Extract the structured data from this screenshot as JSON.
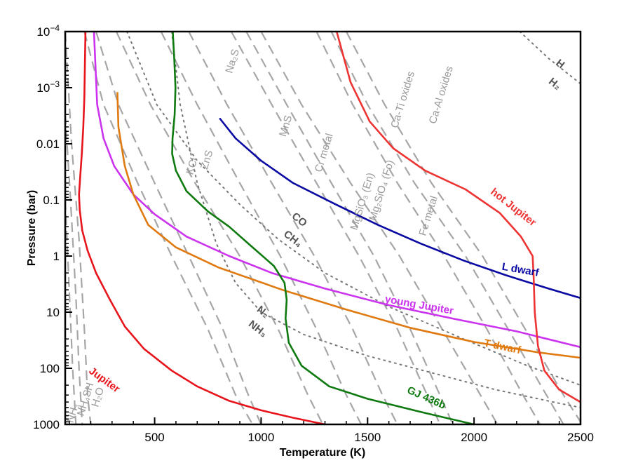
{
  "chart_data": {
    "type": "line",
    "title": "",
    "xlabel": "Temperature (K)",
    "ylabel": "Pressure (bar)",
    "xlim": [
      80,
      2500
    ],
    "ylim": [
      0.0001,
      1000
    ],
    "y_scale": "log",
    "y_inverted": true,
    "grid": false,
    "x_ticks": [
      500,
      1000,
      1500,
      2000,
      2500
    ],
    "x_tick_labels": [
      "500",
      "1000",
      "1500",
      "2000",
      "2500"
    ],
    "y_ticks": [
      0.0001,
      0.001,
      0.01,
      0.1,
      1,
      10,
      100,
      1000
    ],
    "y_tick_labels": [
      {
        "base": "10",
        "exp": "−4"
      },
      {
        "base": "10",
        "exp": "−3"
      },
      {
        "base": "0.01",
        "exp": ""
      },
      {
        "base": "0.1",
        "exp": ""
      },
      {
        "base": "1",
        "exp": ""
      },
      {
        "base": "10",
        "exp": ""
      },
      {
        "base": "100",
        "exp": ""
      },
      {
        "base": "1000",
        "exp": ""
      }
    ],
    "series": [
      {
        "name": "Jupiter",
        "color": "#e8141c",
        "label_pos": [
          255,
          180
        ],
        "label_angle": 36,
        "points": [
          [
            175,
            0.0001
          ],
          [
            170,
            0.0015
          ],
          [
            165,
            0.005
          ],
          [
            158,
            0.015
          ],
          [
            150,
            0.04
          ],
          [
            145,
            0.08
          ],
          [
            148,
            0.15
          ],
          [
            160,
            0.35
          ],
          [
            185,
            0.8
          ],
          [
            225,
            2
          ],
          [
            290,
            6
          ],
          [
            360,
            18
          ],
          [
            450,
            45
          ],
          [
            580,
            110
          ],
          [
            700,
            210
          ],
          [
            850,
            380
          ],
          [
            1000,
            560
          ],
          [
            1150,
            760
          ],
          [
            1300,
            1000
          ]
        ]
      },
      {
        "name": "young Jupiter",
        "color": "#cc33ee",
        "label_pos": [
          1740,
          8.5
        ],
        "label_angle": 10,
        "points": [
          [
            215,
            0.0001
          ],
          [
            230,
            0.002
          ],
          [
            260,
            0.008
          ],
          [
            310,
            0.025
          ],
          [
            400,
            0.08
          ],
          [
            500,
            0.18
          ],
          [
            650,
            0.45
          ],
          [
            850,
            1
          ],
          [
            1050,
            2
          ],
          [
            1300,
            3.8
          ],
          [
            1600,
            7.5
          ],
          [
            1900,
            13
          ],
          [
            2200,
            22
          ],
          [
            2500,
            42
          ]
        ]
      },
      {
        "name": "T dwarf",
        "color": "#e07a10",
        "label_pos": [
          2130,
          47
        ],
        "label_angle": 12,
        "points": [
          [
            325,
            0.0012
          ],
          [
            330,
            0.005
          ],
          [
            360,
            0.025
          ],
          [
            400,
            0.08
          ],
          [
            470,
            0.28
          ],
          [
            600,
            0.7
          ],
          [
            800,
            1.6
          ],
          [
            1100,
            4
          ],
          [
            1400,
            9
          ],
          [
            1700,
            19
          ],
          [
            2000,
            34
          ],
          [
            2300,
            52
          ],
          [
            2500,
            65
          ]
        ]
      },
      {
        "name": "GJ 436b",
        "color": "#0f7a0f",
        "label_pos": [
          1770,
          380
        ],
        "label_angle": 24,
        "points": [
          [
            585,
            0.0001
          ],
          [
            592,
            0.0003
          ],
          [
            598,
            0.001
          ],
          [
            594,
            0.003
          ],
          [
            584,
            0.008
          ],
          [
            582,
            0.015
          ],
          [
            600,
            0.03
          ],
          [
            650,
            0.07
          ],
          [
            750,
            0.16
          ],
          [
            850,
            0.3
          ],
          [
            960,
            0.7
          ],
          [
            1060,
            1.5
          ],
          [
            1110,
            3
          ],
          [
            1120,
            6
          ],
          [
            1115,
            13
          ],
          [
            1130,
            35
          ],
          [
            1190,
            90
          ],
          [
            1320,
            210
          ],
          [
            1500,
            350
          ],
          [
            1750,
            600
          ],
          [
            2000,
            1000
          ]
        ]
      },
      {
        "name": "L dwarf",
        "color": "#0a0aa3",
        "label_pos": [
          2215,
          2.0
        ],
        "label_angle": 10,
        "points": [
          [
            805,
            0.0035
          ],
          [
            880,
            0.008
          ],
          [
            1000,
            0.02
          ],
          [
            1150,
            0.05
          ],
          [
            1350,
            0.12
          ],
          [
            1550,
            0.28
          ],
          [
            1750,
            0.6
          ],
          [
            1950,
            1.2
          ],
          [
            2150,
            2.2
          ],
          [
            2350,
            3.8
          ],
          [
            2500,
            5.6
          ]
        ]
      },
      {
        "name": "hot Jupiter",
        "color": "#ee3333",
        "label_pos": [
          2175,
          0.15
        ],
        "label_angle": 38,
        "points": [
          [
            1355,
            0.0001
          ],
          [
            1420,
            0.0008
          ],
          [
            1510,
            0.004
          ],
          [
            1620,
            0.012
          ],
          [
            1770,
            0.03
          ],
          [
            1960,
            0.065
          ],
          [
            2120,
            0.17
          ],
          [
            2220,
            0.45
          ],
          [
            2275,
            1
          ],
          [
            2280,
            2.5
          ],
          [
            2285,
            10
          ],
          [
            2300,
            40
          ],
          [
            2330,
            110
          ],
          [
            2400,
            240
          ],
          [
            2500,
            400
          ]
        ]
      }
    ],
    "condensation_curves": [
      {
        "label": "H₂O",
        "points": [
          [
            80,
            0.0001
          ],
          [
            110,
            0.01
          ],
          [
            145,
            0.5
          ],
          [
            170,
            20
          ],
          [
            185,
            300
          ],
          [
            200,
            1000
          ]
        ]
      },
      {
        "label": "NH₄SH",
        "points": [
          [
            80,
            0.003
          ],
          [
            105,
            0.1
          ],
          [
            130,
            5
          ],
          [
            145,
            100
          ],
          [
            160,
            1000
          ]
        ]
      },
      {
        "label": "NH₃",
        "points": [
          [
            80,
            0.1
          ],
          [
            100,
            5
          ],
          [
            115,
            100
          ],
          [
            130,
            1000
          ]
        ]
      },
      {
        "label": "KCl",
        "points": [
          [
            170,
            0.0001
          ],
          [
            260,
            0.002
          ],
          [
            420,
            0.05
          ],
          [
            580,
            1
          ],
          [
            750,
            20
          ],
          [
            880,
            300
          ],
          [
            960,
            1000
          ]
        ]
      },
      {
        "label": "ZnS",
        "points": [
          [
            225,
            0.0001
          ],
          [
            330,
            0.002
          ],
          [
            500,
            0.05
          ],
          [
            660,
            1
          ],
          [
            820,
            20
          ],
          [
            940,
            300
          ],
          [
            1000,
            1000
          ]
        ]
      },
      {
        "label": "Na₂S",
        "points": [
          [
            320,
            0.0001
          ],
          [
            480,
            0.002
          ],
          [
            690,
            0.05
          ],
          [
            900,
            1
          ],
          [
            1080,
            20
          ],
          [
            1220,
            300
          ],
          [
            1290,
            1000
          ]
        ]
      },
      {
        "label": "MnS",
        "points": [
          [
            530,
            0.0001
          ],
          [
            700,
            0.002
          ],
          [
            900,
            0.05
          ],
          [
            1090,
            1
          ],
          [
            1260,
            20
          ],
          [
            1400,
            300
          ],
          [
            1470,
            1000
          ]
        ]
      },
      {
        "label": "Cr metal",
        "points": [
          [
            660,
            0.0001
          ],
          [
            840,
            0.002
          ],
          [
            1050,
            0.05
          ],
          [
            1250,
            1
          ],
          [
            1430,
            20
          ],
          [
            1570,
            300
          ],
          [
            1640,
            1000
          ]
        ]
      },
      {
        "label": "MgSiO₃ (En)",
        "points": [
          [
            860,
            0.0001
          ],
          [
            1050,
            0.002
          ],
          [
            1260,
            0.05
          ],
          [
            1460,
            1
          ],
          [
            1640,
            20
          ],
          [
            1780,
            300
          ],
          [
            1840,
            1000
          ]
        ]
      },
      {
        "label": "Mg₂SiO₄ (Fo)",
        "points": [
          [
            930,
            0.0001
          ],
          [
            1120,
            0.002
          ],
          [
            1330,
            0.05
          ],
          [
            1530,
            1
          ],
          [
            1700,
            20
          ],
          [
            1840,
            300
          ],
          [
            1900,
            1000
          ]
        ]
      },
      {
        "label": "Fe metal",
        "points": [
          [
            1000,
            0.0001
          ],
          [
            1190,
            0.002
          ],
          [
            1420,
            0.05
          ],
          [
            1650,
            1
          ],
          [
            1850,
            20
          ],
          [
            2030,
            300
          ],
          [
            2110,
            1000
          ]
        ]
      },
      {
        "label": "Ca-Ti oxides",
        "points": [
          [
            1260,
            0.0001
          ],
          [
            1430,
            0.002
          ],
          [
            1640,
            0.05
          ],
          [
            1860,
            1
          ],
          [
            2060,
            20
          ],
          [
            2230,
            300
          ],
          [
            2310,
            1000
          ]
        ]
      },
      {
        "label": "Ca-Al oxides",
        "points": [
          [
            1330,
            0.0001
          ],
          [
            1500,
            0.002
          ],
          [
            1720,
            0.05
          ],
          [
            1960,
            1
          ],
          [
            2160,
            20
          ],
          [
            2340,
            300
          ],
          [
            2420,
            1000
          ]
        ]
      },
      {
        "label": "",
        "points": [
          [
            1400,
            0.0001
          ],
          [
            1580,
            0.002
          ],
          [
            1800,
            0.05
          ],
          [
            2040,
            1
          ],
          [
            2240,
            20
          ],
          [
            2420,
            300
          ],
          [
            2500,
            900
          ]
        ]
      }
    ],
    "equilibrium_curves": [
      {
        "label_a": "CO",
        "label_b": "CH₄",
        "points": [
          [
            370,
            0.0001
          ],
          [
            510,
            0.002
          ],
          [
            700,
            0.02
          ],
          [
            900,
            0.12
          ],
          [
            1080,
            0.5
          ],
          [
            1300,
            2
          ],
          [
            1600,
            8
          ],
          [
            1950,
            30
          ],
          [
            2250,
            90
          ],
          [
            2500,
            200
          ]
        ]
      },
      {
        "label_a": "N₂",
        "label_b": "NH₃",
        "points": [
          [
            580,
            0.0001
          ],
          [
            620,
            0.002
          ],
          [
            700,
            0.05
          ],
          [
            790,
            0.6
          ],
          [
            880,
            3
          ],
          [
            1000,
            10
          ],
          [
            1200,
            25
          ],
          [
            1500,
            60
          ],
          [
            1800,
            120
          ],
          [
            2100,
            240
          ],
          [
            2400,
            420
          ],
          [
            2500,
            500
          ]
        ]
      },
      {
        "label_a": "H",
        "label_b": "H₂",
        "points": [
          [
            2215,
            0.0001
          ],
          [
            2350,
            0.0003
          ],
          [
            2500,
            0.00085
          ]
        ]
      }
    ],
    "annotations": [
      {
        "text": "KCl",
        "x": 690,
        "y": 0.026,
        "angle": -73,
        "cls": "cond-label"
      },
      {
        "text": "ZnS",
        "x": 760,
        "y": 0.02,
        "angle": -73,
        "cls": "cond-label"
      },
      {
        "text": "Na₂S",
        "x": 880,
        "y": 0.00035,
        "angle": -73,
        "cls": "cond-label"
      },
      {
        "text": "MnS",
        "x": 1130,
        "y": 0.005,
        "angle": -73,
        "cls": "cond-label"
      },
      {
        "text": "Cr metal",
        "x": 1310,
        "y": 0.015,
        "angle": -73,
        "cls": "cond-label"
      },
      {
        "text": "MgSiO₃ (En)",
        "x": 1490,
        "y": 0.11,
        "angle": -73,
        "cls": "cond-label"
      },
      {
        "text": "Mg₂SiO₄ (Fo)",
        "x": 1580,
        "y": 0.07,
        "angle": -73,
        "cls": "cond-label"
      },
      {
        "text": "Fe metal",
        "x": 1800,
        "y": 0.2,
        "angle": -73,
        "cls": "cond-label"
      },
      {
        "text": "Ca-Ti oxides",
        "x": 1680,
        "y": 0.0017,
        "angle": -73,
        "cls": "cond-label"
      },
      {
        "text": "Ca-Al oxides",
        "x": 1860,
        "y": 0.0014,
        "angle": -73,
        "cls": "cond-label"
      },
      {
        "text": "H₂O",
        "x": 248,
        "y": 340,
        "angle": -73,
        "cls": "cond-label"
      },
      {
        "text": "NH₄SH",
        "x": 190,
        "y": 370,
        "angle": -73,
        "cls": "cond-label"
      },
      {
        "text": "NH₃",
        "x": 130,
        "y": 650,
        "angle": -73,
        "cls": "cond-label"
      },
      {
        "text": "CO",
        "x": 1170,
        "y": 0.25,
        "angle": 38,
        "cls": "chem-label"
      },
      {
        "text": "CH₄",
        "x": 1140,
        "y": 0.55,
        "angle": 38,
        "cls": "chem-label"
      },
      {
        "text": "N₂",
        "x": 1000,
        "y": 11,
        "angle": 38,
        "cls": "chem-label"
      },
      {
        "text": "NH₃",
        "x": 975,
        "y": 22,
        "angle": 38,
        "cls": "chem-label"
      },
      {
        "text": "H",
        "x": 2395,
        "y": 0.00042,
        "angle": 38,
        "cls": "chem-label"
      },
      {
        "text": "H₂",
        "x": 2370,
        "y": 0.00095,
        "angle": 38,
        "cls": "chem-label"
      }
    ]
  }
}
